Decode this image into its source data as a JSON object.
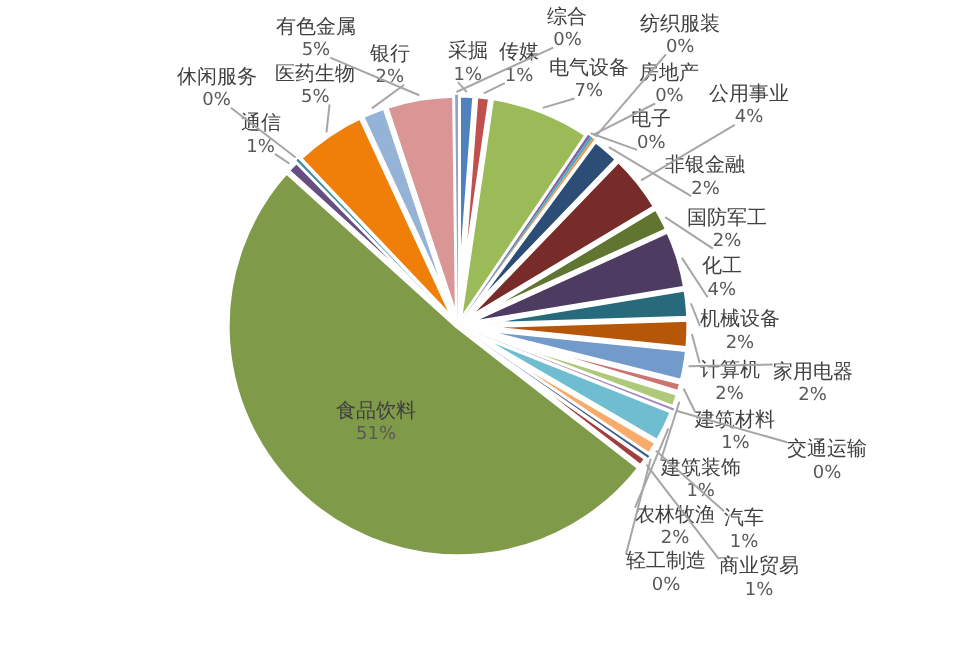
{
  "chart_data": {
    "type": "pie",
    "categories": [
      "采掘",
      "传媒",
      "电气设备",
      "电子",
      "房地产",
      "纺织服装",
      "非银金融",
      "公用事业",
      "国防军工",
      "化工",
      "机械设备",
      "计算机",
      "家用电器",
      "建筑材料",
      "建筑装饰",
      "交通运输",
      "农林牧渔",
      "汽车",
      "轻工制造",
      "商业贸易",
      "食品饮料",
      "通信",
      "休闲服务",
      "医药生物",
      "银行",
      "有色金属",
      "综合"
    ],
    "values": [
      1.2,
      1.1,
      7.2,
      0.2,
      0.2,
      0.2,
      2.1,
      4.2,
      1.8,
      4.2,
      2.1,
      2.1,
      2.3,
      0.8,
      1.1,
      0.2,
      2.4,
      1.1,
      0.2,
      0.8,
      51.2,
      1.0,
      0.2,
      5.2,
      1.8,
      4.9,
      0.2
    ],
    "value_labels": [
      "1%",
      "1%",
      "7%",
      "0%",
      "0%",
      "0%",
      "2%",
      "4%",
      "2%",
      "4%",
      "2%",
      "2%",
      "2%",
      "1%",
      "1%",
      "0%",
      "2%",
      "1%",
      "0%",
      "1%",
      "51%",
      "1%",
      "0%",
      "5%",
      "2%",
      "5%",
      "0%"
    ],
    "colors": [
      "#4f81bd",
      "#c0504d",
      "#9bbb59",
      "#8064a2",
      "#4bacc6",
      "#f79646",
      "#2c4d75",
      "#772c2a",
      "#5f7530",
      "#4d3b62",
      "#276a7c",
      "#b65708",
      "#729aca",
      "#cd7371",
      "#afc97a",
      "#a18bbe",
      "#6fbdd1",
      "#f9ab6b",
      "#3a5f8b",
      "#a0403e",
      "#7f9a48",
      "#664e82",
      "#3e8da2",
      "#f07f09",
      "#95b3d7",
      "#d99694",
      "#8fa5c8"
    ],
    "legend": false
  }
}
